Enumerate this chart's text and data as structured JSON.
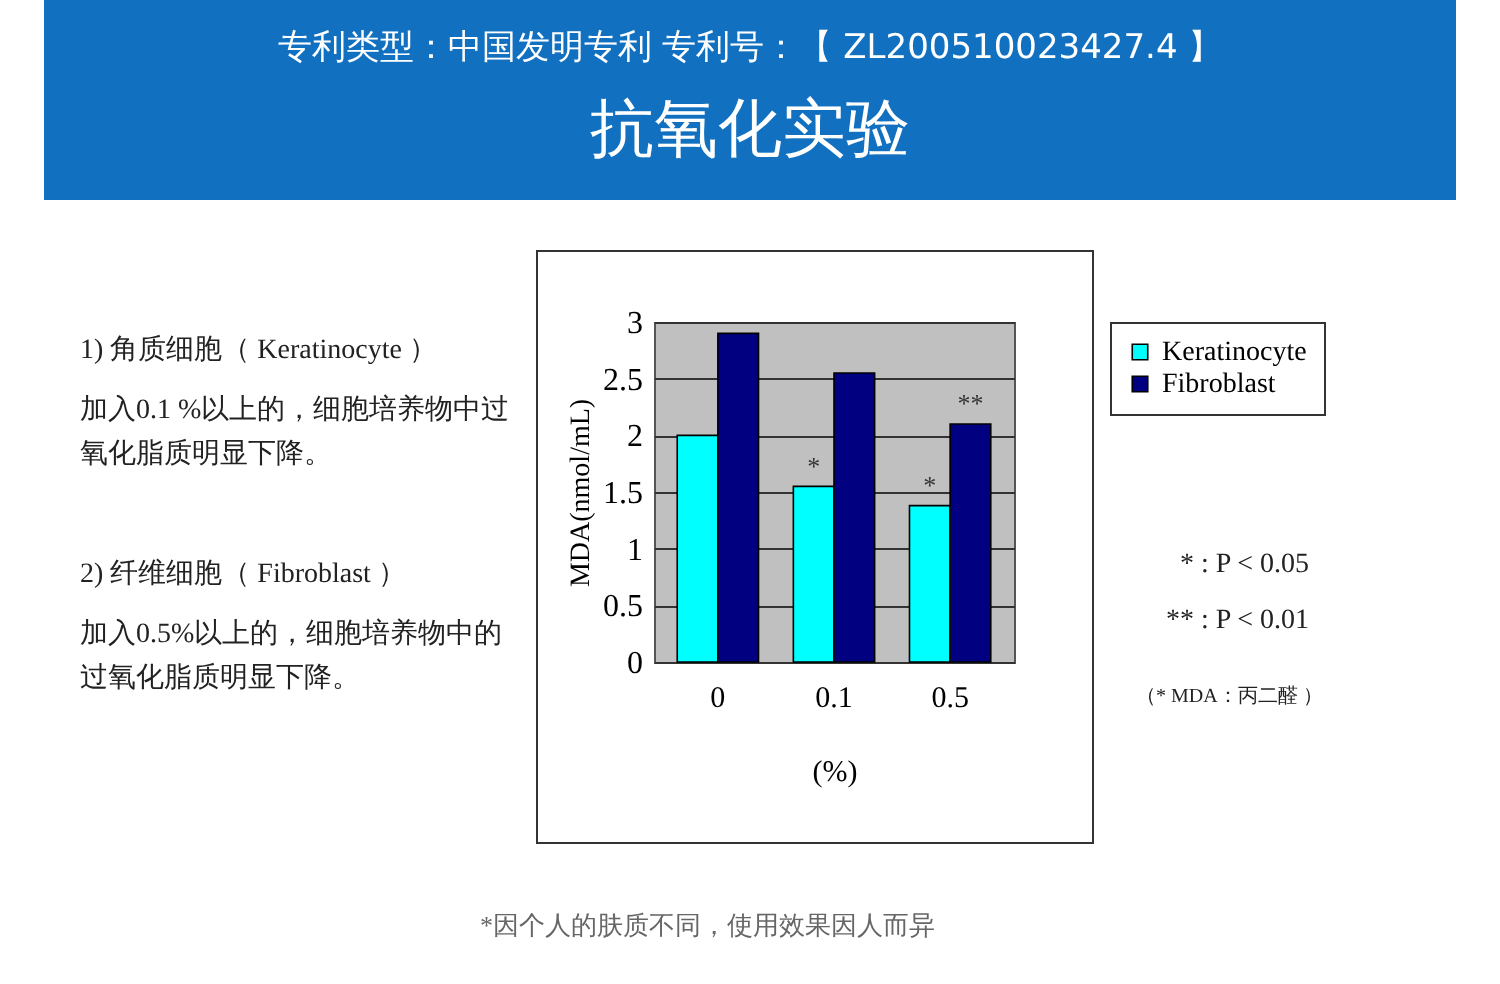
{
  "chart_data": {
    "type": "bar",
    "title": "抗氧化实验",
    "subtitle": "专利类型：中国发明专利 专利号：【 ZL200510023427.4 】",
    "categories": [
      "0",
      "0.1",
      "0.5"
    ],
    "series": [
      {
        "name": "Keratinocyte",
        "color": "#00ffff",
        "values": [
          2.0,
          1.55,
          1.38
        ]
      },
      {
        "name": "Fibroblast",
        "color": "#000080",
        "values": [
          2.9,
          2.55,
          2.1
        ]
      }
    ],
    "xlabel": "(%)",
    "ylabel": "MDA(nmol/mL)",
    "ylim": [
      0,
      3
    ],
    "yticks": [
      0,
      0.5,
      1,
      1.5,
      2,
      2.5,
      3
    ],
    "grid": "y",
    "legend": "right",
    "annotations": [
      "1) 角质细胞（ Keratinocyte ）",
      "加入0.1 %以上的，细胞培养物中过氧化脂质明显下降。",
      "2) 纤维细胞（ Fibroblast ）",
      "加入0.5%以上的，细胞培养物中的过氧化脂质明显下降。",
      "* : P < 0.05",
      "** : P < 0.01",
      "（* MDA：丙二醛 ）",
      "*因个人的肤质不同，使用效果因人而异",
      {
        "text": "*",
        "x": "0.1",
        "y": 1.6
      },
      {
        "text": "*",
        "x": "0.5",
        "y": 1.43
      },
      {
        "text": "**",
        "x": "0.5",
        "y": 2.15
      }
    ]
  }
}
